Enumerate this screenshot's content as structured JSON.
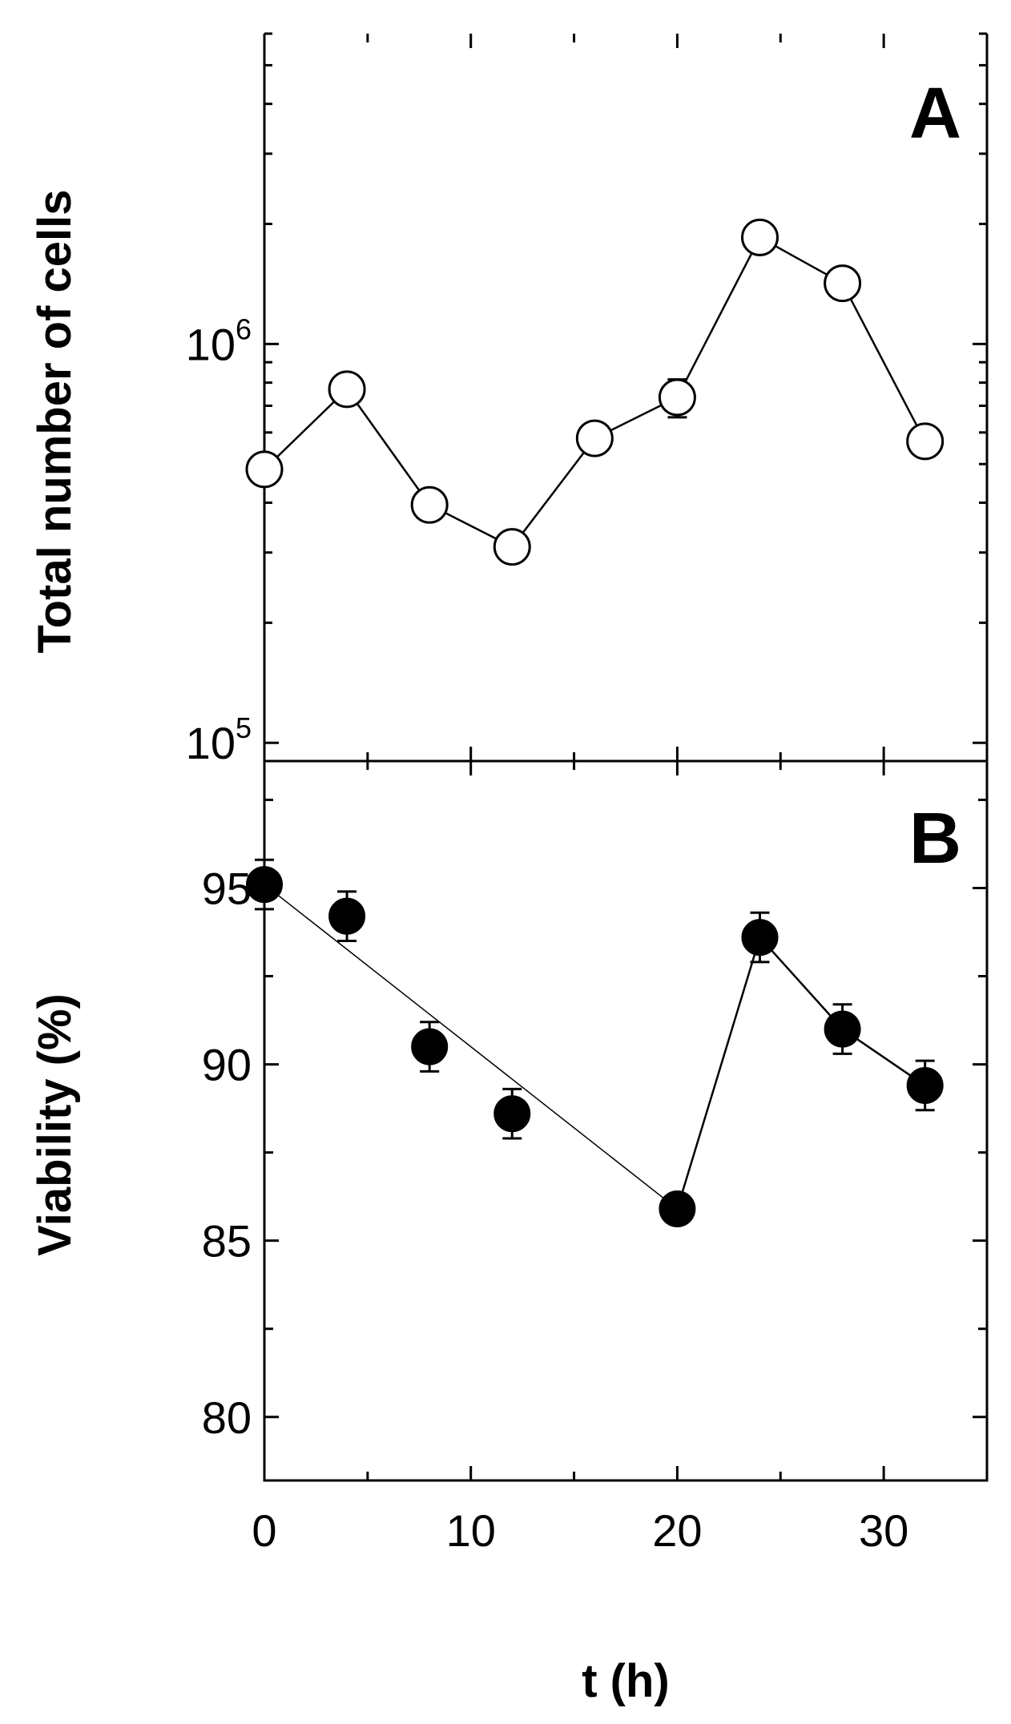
{
  "chart_data": [
    {
      "panel": "A",
      "type": "line",
      "scale": "log",
      "title": "",
      "xlabel": "t (h)",
      "ylabel": "Total number of cells",
      "xlim": [
        0,
        35
      ],
      "ylim": [
        90000,
        6000000
      ],
      "y_ticks": [
        {
          "base": "10",
          "exp": "5",
          "value": 100000
        },
        {
          "base": "10",
          "exp": "6",
          "value": 1000000
        }
      ],
      "marker": "open-circle",
      "x": [
        0,
        4,
        8,
        12,
        16,
        20,
        24,
        28,
        32
      ],
      "values": [
        485000,
        770000,
        395000,
        310000,
        580000,
        735000,
        1850000,
        1420000,
        570000
      ],
      "err": [
        20000,
        35000,
        25000,
        20000,
        30000,
        80000,
        60000,
        50000,
        35000
      ],
      "connect": [
        [
          0,
          1,
          2,
          3,
          4,
          5,
          6,
          7,
          8
        ]
      ]
    },
    {
      "panel": "B",
      "type": "line",
      "title": "",
      "xlabel": "t (h)",
      "ylabel": "Viability (%)",
      "xlim": [
        0,
        35
      ],
      "ylim": [
        78.2,
        98.6
      ],
      "y_ticks": [
        {
          "label": "80",
          "value": 80
        },
        {
          "label": "85",
          "value": 85
        },
        {
          "label": "90",
          "value": 90
        },
        {
          "label": "95",
          "value": 95
        }
      ],
      "x_ticks": [
        {
          "label": "0",
          "value": 0
        },
        {
          "label": "10",
          "value": 10
        },
        {
          "label": "20",
          "value": 20
        },
        {
          "label": "30",
          "value": 30
        }
      ],
      "marker": "filled-circle",
      "x": [
        0,
        4,
        8,
        12,
        20,
        24,
        28,
        32
      ],
      "values": [
        95.1,
        94.2,
        90.5,
        88.6,
        85.9,
        93.6,
        91.0,
        89.4
      ],
      "err": [
        0.7,
        0.7,
        0.7,
        0.7,
        0.4,
        0.7,
        0.7,
        0.7
      ],
      "trend_line": {
        "x": [
          0,
          20
        ],
        "y": [
          95.1,
          85.9
        ]
      },
      "connect": [
        [
          4,
          5,
          6,
          7
        ]
      ]
    }
  ]
}
